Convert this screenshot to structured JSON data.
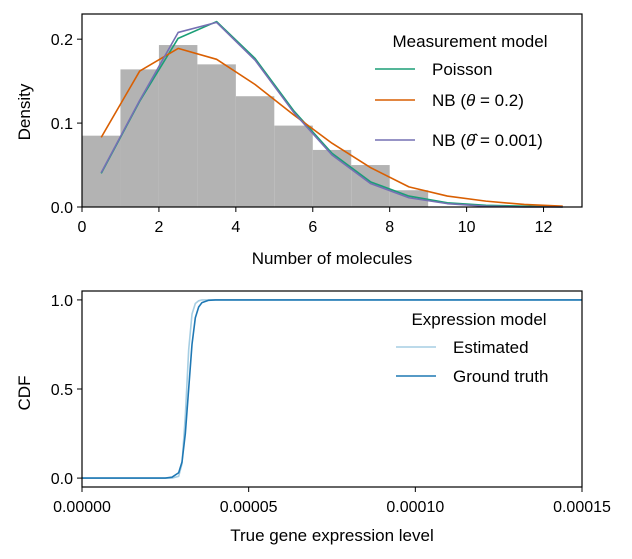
{
  "chart_data": [
    {
      "type": "bar",
      "xlabel": "Number of molecules",
      "ylabel": "Density",
      "xlim": [
        0,
        13
      ],
      "ylim": [
        0,
        0.23
      ],
      "xticks": [
        0,
        2,
        4,
        6,
        8,
        10,
        12
      ],
      "xtick_labels": [
        "0",
        "2",
        "4",
        "6",
        "8",
        "10",
        "12"
      ],
      "yticks": [
        0,
        0.1,
        0.2
      ],
      "ytick_labels": [
        "0.0",
        "0.1",
        "0.2"
      ],
      "grid": false,
      "legend_position": "top-right",
      "legend_title": "Measurement model",
      "histogram": {
        "color": "#b3b3b3",
        "bin_width": 1,
        "bin_starts": [
          0,
          1,
          2,
          3,
          4,
          5,
          6,
          7,
          8
        ],
        "values": [
          0.085,
          0.164,
          0.193,
          0.17,
          0.132,
          0.097,
          0.068,
          0.05,
          0.02
        ]
      },
      "series": [
        {
          "name": "Poisson",
          "color": "#1b9e77",
          "x": [
            0.5,
            1.5,
            2.5,
            3.5,
            4.5,
            5.5,
            6.5,
            7.5,
            8.5,
            9.5,
            10.5,
            11.5,
            12.5
          ],
          "values": [
            0.04,
            0.126,
            0.201,
            0.221,
            0.177,
            0.115,
            0.064,
            0.03,
            0.013,
            0.005,
            0.002,
            0.001,
            0.0
          ]
        },
        {
          "name": "NB (θ = 0.2)",
          "color": "#d95f02",
          "x": [
            0.5,
            1.5,
            2.5,
            3.5,
            4.5,
            5.5,
            6.5,
            7.5,
            8.5,
            9.5,
            10.5,
            11.5,
            12.5
          ],
          "values": [
            0.083,
            0.162,
            0.189,
            0.176,
            0.146,
            0.11,
            0.076,
            0.047,
            0.024,
            0.013,
            0.007,
            0.003,
            0.001
          ]
        },
        {
          "name": "NB (θ̂ = 0.001)",
          "color": "#7570b3",
          "x": [
            0.5,
            1.5,
            2.5,
            3.5,
            4.5,
            5.5,
            6.5,
            7.5,
            8.5,
            9.5,
            10.5,
            11.5,
            12.5
          ],
          "values": [
            0.041,
            0.127,
            0.208,
            0.22,
            0.175,
            0.113,
            0.062,
            0.028,
            0.011,
            0.004,
            0.001,
            0.0,
            0.0
          ]
        }
      ]
    },
    {
      "type": "line",
      "xlabel": "True gene expression level",
      "ylabel": "CDF",
      "xlim": [
        0,
        0.00015
      ],
      "ylim": [
        -0.05,
        1.05
      ],
      "xticks": [
        0,
        5e-05,
        0.0001,
        0.00015
      ],
      "xtick_labels": [
        "0.00000",
        "0.00005",
        "0.00010",
        "0.00015"
      ],
      "yticks": [
        0,
        0.5,
        1
      ],
      "ytick_labels": [
        "0.0",
        "0.5",
        "1.0"
      ],
      "grid": false,
      "legend_position": "top-right",
      "legend_title": "Expression model",
      "series": [
        {
          "name": "Estimated",
          "color": "#a6cee3",
          "x": [
            0,
            2.7e-05,
            2.9e-05,
            3e-05,
            3.1e-05,
            3.2e-05,
            3.3e-05,
            3.4e-05,
            3.5e-05,
            3.6e-05,
            3.7e-05,
            4e-05,
            0.00015
          ],
          "values": [
            0,
            0,
            0.01,
            0.08,
            0.35,
            0.72,
            0.92,
            0.98,
            0.995,
            1.0,
            1.0,
            1.0,
            1.0
          ]
        },
        {
          "name": "Ground truth",
          "color": "#1f78b4",
          "x": [
            0,
            2.5e-05,
            2.7e-05,
            2.9e-05,
            3e-05,
            3.1e-05,
            3.2e-05,
            3.3e-05,
            3.4e-05,
            3.5e-05,
            3.6e-05,
            3.8e-05,
            4e-05,
            0.00015
          ],
          "values": [
            0,
            0,
            0.005,
            0.03,
            0.09,
            0.25,
            0.5,
            0.75,
            0.9,
            0.96,
            0.985,
            0.998,
            1.0,
            1.0
          ]
        }
      ]
    }
  ]
}
